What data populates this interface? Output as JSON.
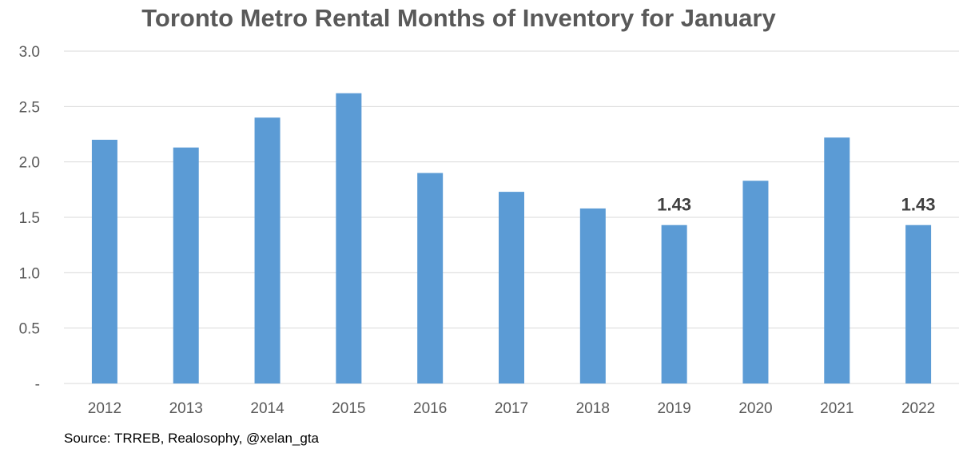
{
  "chart_data": {
    "type": "bar",
    "title": "Toronto Metro Rental Months of Inventory for January",
    "categories": [
      "2012",
      "2013",
      "2014",
      "2015",
      "2016",
      "2017",
      "2018",
      "2019",
      "2020",
      "2021",
      "2022"
    ],
    "values": [
      2.2,
      2.13,
      2.4,
      2.62,
      1.9,
      1.73,
      1.58,
      1.43,
      1.83,
      2.22,
      1.43
    ],
    "ylim": [
      0,
      3.0
    ],
    "yticks": [
      0,
      0.5,
      1.0,
      1.5,
      2.0,
      2.5,
      3.0
    ],
    "ytick_labels": [
      "-",
      "0.5",
      "1.0",
      "1.5",
      "2.0",
      "2.5",
      "3.0"
    ],
    "data_labels": [
      {
        "category": "2019",
        "text": "1.43"
      },
      {
        "category": "2022",
        "text": "1.43"
      }
    ],
    "grid": true,
    "bar_color": "#5b9bd5",
    "gridline_color": "#d9d9d9",
    "source": "Source: TRREB, Realosophy, @xelan_gta"
  }
}
